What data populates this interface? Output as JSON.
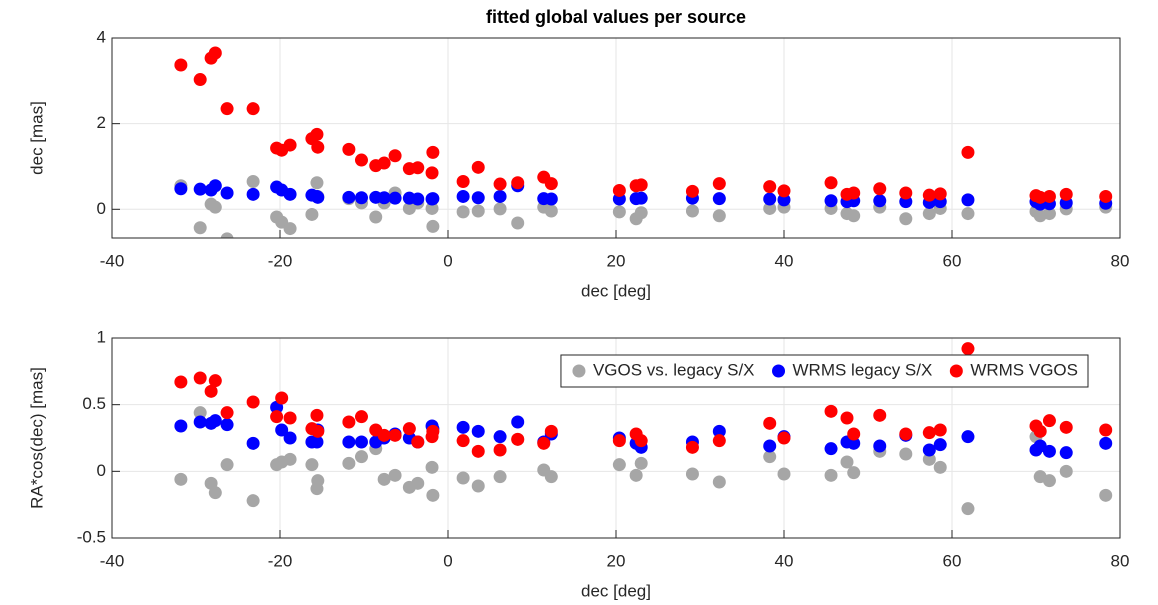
{
  "chart_data": [
    {
      "type": "scatter",
      "title": "fitted global values per source",
      "x_label": "dec [deg]",
      "y_label": "dec [mas]",
      "xlim": [
        -40,
        80
      ],
      "xticks": [
        -40,
        -20,
        0,
        20,
        40,
        60,
        80
      ],
      "ylim": [
        -0.67,
        4
      ],
      "yticks": [
        0,
        2,
        4
      ],
      "grid": true,
      "x": [
        -31.8,
        -29.5,
        -28.2,
        -27.7,
        -26.3,
        -23.2,
        -20.4,
        -19.8,
        -18.8,
        -16.2,
        -15.6,
        -15.5,
        -11.8,
        -10.3,
        -8.6,
        -7.6,
        -6.3,
        -4.6,
        -3.6,
        -1.8,
        -1.9,
        1.8,
        3.6,
        6.2,
        8.3,
        11.4,
        12.3,
        20.4,
        22.4,
        23.0,
        29.1,
        32.3,
        38.3,
        40.0,
        45.6,
        47.5,
        48.3,
        51.4,
        54.5,
        57.3,
        58.6,
        61.9,
        70.0,
        70.5,
        71.6,
        73.6,
        78.3
      ],
      "series": [
        {
          "color": "#a6a6a6",
          "values": [
            0.55,
            -0.43,
            0.12,
            0.05,
            -0.69,
            0.65,
            -0.18,
            -0.3,
            -0.45,
            -0.12,
            0.62,
            0.3,
            0.25,
            0.15,
            -0.18,
            0.15,
            0.38,
            0.02,
            0.15,
            -0.4,
            0.02,
            -0.06,
            -0.04,
            0.01,
            -0.32,
            0.05,
            -0.04,
            -0.06,
            -0.22,
            -0.08,
            -0.04,
            -0.15,
            0.02,
            0.05,
            0.02,
            -0.1,
            -0.15,
            0.05,
            -0.22,
            -0.1,
            0.02,
            -0.1,
            -0.05,
            -0.15,
            -0.1,
            0.01,
            0.05
          ]
        },
        {
          "color": "#0000ff",
          "values": [
            0.48,
            0.47,
            0.45,
            0.55,
            0.38,
            0.35,
            0.52,
            0.45,
            0.35,
            0.33,
            0.3,
            0.28,
            0.28,
            0.27,
            0.28,
            0.27,
            0.26,
            0.26,
            0.24,
            0.25,
            0.24,
            0.3,
            0.27,
            0.3,
            0.55,
            0.25,
            0.24,
            0.24,
            0.25,
            0.26,
            0.26,
            0.25,
            0.24,
            0.22,
            0.2,
            0.18,
            0.2,
            0.2,
            0.18,
            0.16,
            0.18,
            0.22,
            0.18,
            0.12,
            0.13,
            0.15,
            0.14
          ]
        },
        {
          "color": "#ff0000",
          "values": [
            3.37,
            3.03,
            3.53,
            3.65,
            2.35,
            2.35,
            1.43,
            1.38,
            1.5,
            1.65,
            1.75,
            1.45,
            1.4,
            1.15,
            1.02,
            1.08,
            1.25,
            0.95,
            0.97,
            1.33,
            0.85,
            0.65,
            0.98,
            0.59,
            0.62,
            0.75,
            0.6,
            0.44,
            0.55,
            0.57,
            0.42,
            0.6,
            0.53,
            0.43,
            0.62,
            0.35,
            0.38,
            0.48,
            0.38,
            0.33,
            0.36,
            1.33,
            0.32,
            0.28,
            0.3,
            0.35,
            0.3
          ]
        }
      ]
    },
    {
      "type": "scatter",
      "x_label": "dec [deg]",
      "y_label": "RA*cos(dec) [mas]",
      "xlim": [
        -40,
        80
      ],
      "xticks": [
        -40,
        -20,
        0,
        20,
        40,
        60,
        80
      ],
      "ylim": [
        -0.5,
        1
      ],
      "yticks": [
        -0.5,
        0,
        0.5,
        1
      ],
      "grid": true,
      "legend": "northeast",
      "x": [
        -31.8,
        -29.5,
        -28.2,
        -27.7,
        -26.3,
        -23.2,
        -20.4,
        -19.8,
        -18.8,
        -16.2,
        -15.6,
        -15.5,
        -11.8,
        -10.3,
        -8.6,
        -7.6,
        -6.3,
        -4.6,
        -3.6,
        -1.8,
        -1.9,
        1.8,
        3.6,
        6.2,
        8.3,
        11.4,
        12.3,
        20.4,
        22.4,
        23.0,
        29.1,
        32.3,
        38.3,
        40.0,
        45.6,
        47.5,
        48.3,
        51.4,
        54.5,
        57.3,
        58.6,
        61.9,
        70.0,
        70.5,
        71.6,
        73.6,
        78.3
      ],
      "series": [
        {
          "name": "VGOS vs. legacy S/X",
          "color": "#a6a6a6",
          "values": [
            -0.06,
            0.44,
            -0.09,
            -0.16,
            0.05,
            -0.22,
            0.05,
            0.07,
            0.09,
            0.05,
            -0.13,
            -0.07,
            0.06,
            0.11,
            0.17,
            -0.06,
            -0.03,
            -0.12,
            -0.09,
            -0.18,
            0.03,
            -0.05,
            -0.11,
            -0.04,
            0.24,
            0.01,
            -0.04,
            0.05,
            -0.03,
            0.06,
            -0.02,
            -0.08,
            0.11,
            -0.02,
            -0.03,
            0.07,
            -0.01,
            0.15,
            0.13,
            0.09,
            0.03,
            -0.28,
            0.26,
            -0.04,
            -0.07,
            0.0,
            -0.18
          ]
        },
        {
          "name": "WRMS legacy S/X",
          "color": "#0000ff",
          "values": [
            0.34,
            0.37,
            0.36,
            0.38,
            0.35,
            0.21,
            0.48,
            0.31,
            0.25,
            0.22,
            0.22,
            0.31,
            0.22,
            0.22,
            0.22,
            0.25,
            0.28,
            0.25,
            0.22,
            0.32,
            0.34,
            0.33,
            0.3,
            0.26,
            0.37,
            0.22,
            0.28,
            0.25,
            0.21,
            0.18,
            0.22,
            0.3,
            0.19,
            0.26,
            0.17,
            0.22,
            0.21,
            0.19,
            0.27,
            0.16,
            0.2,
            0.26,
            0.16,
            0.19,
            0.15,
            0.14,
            0.21
          ]
        },
        {
          "name": "WRMS VGOS",
          "color": "#ff0000",
          "values": [
            0.67,
            0.7,
            0.6,
            0.68,
            0.44,
            0.52,
            0.41,
            0.55,
            0.4,
            0.32,
            0.42,
            0.3,
            0.37,
            0.41,
            0.31,
            0.27,
            0.27,
            0.32,
            0.22,
            0.3,
            0.26,
            0.23,
            0.15,
            0.16,
            0.24,
            0.21,
            0.3,
            0.23,
            0.28,
            0.23,
            0.18,
            0.23,
            0.36,
            0.25,
            0.45,
            0.4,
            0.28,
            0.42,
            0.28,
            0.29,
            0.31,
            0.92,
            0.34,
            0.3,
            0.38,
            0.33,
            0.31
          ]
        }
      ]
    }
  ]
}
